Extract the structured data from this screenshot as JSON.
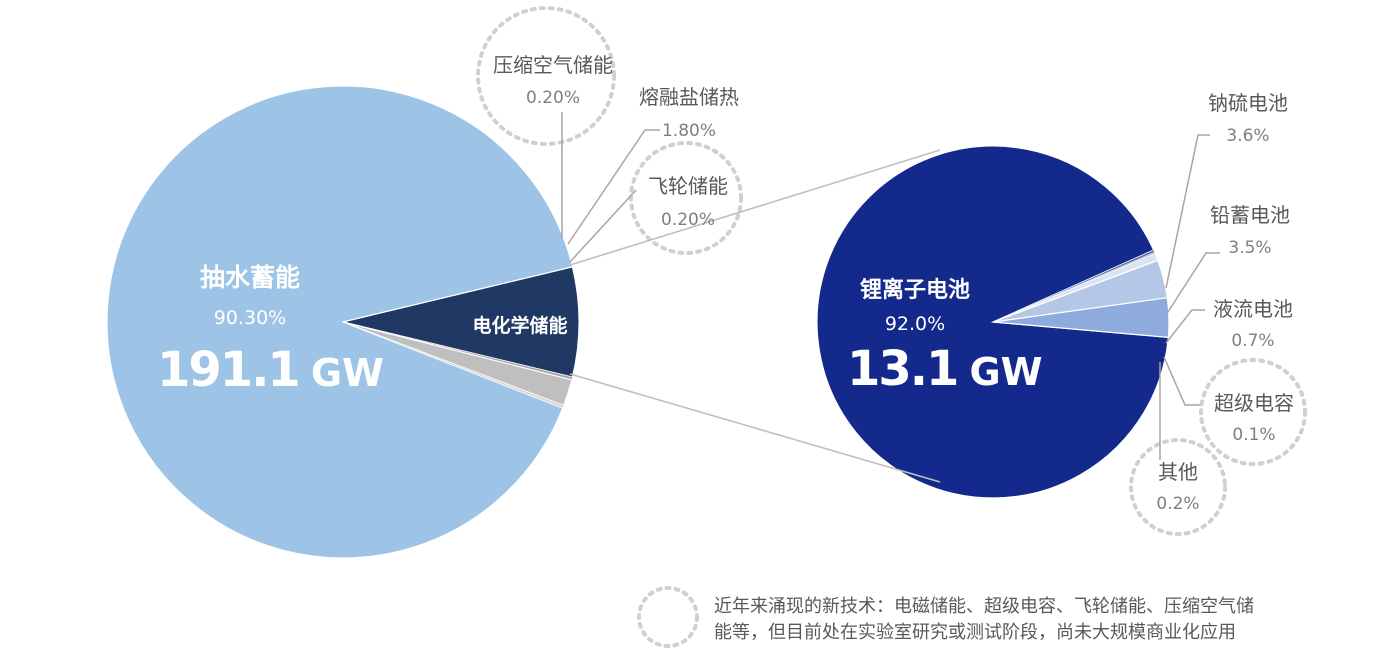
{
  "chart_data": [
    {
      "type": "pie",
      "title": "",
      "slices": [
        {
          "label": "抽水蓄能",
          "value_label": "90.30%",
          "value": 90.3,
          "extra": "191.1",
          "unit": "GW",
          "color": "#9dc3e6"
        },
        {
          "label": "电化学储能",
          "value_label": "",
          "value": 7.5,
          "color": "#1f3864"
        },
        {
          "label": "飞轮储能",
          "value_label": "0.20%",
          "value": 0.2,
          "color": "#a6a6a6"
        },
        {
          "label": "熔融盐储热",
          "value_label": "1.80%",
          "value": 1.8,
          "color": "#bfbfbf"
        },
        {
          "label": "压缩空气储能",
          "value_label": "0.20%",
          "value": 0.2,
          "color": "#d9d9d9"
        }
      ]
    },
    {
      "type": "pie",
      "title": "",
      "slices": [
        {
          "label": "锂离子电池",
          "value_label": "92.0%",
          "value": 92.0,
          "extra": "13.1",
          "unit": "GW",
          "color": "#132a8c"
        },
        {
          "label": "钠硫电池",
          "value_label": "3.6%",
          "value": 3.6,
          "color": "#8faadc"
        },
        {
          "label": "铅蓄电池",
          "value_label": "3.5%",
          "value": 3.5,
          "color": "#b4c7e7"
        },
        {
          "label": "液流电池",
          "value_label": "0.7%",
          "value": 0.7,
          "color": "#dae3f3"
        },
        {
          "label": "超级电容",
          "value_label": "0.1%",
          "value": 0.1,
          "color": "#8a9fc8"
        },
        {
          "label": "其他",
          "value_label": "0.2%",
          "value": 0.2,
          "color": "#5b6f9e"
        }
      ]
    }
  ],
  "note": {
    "line1": "近年来涌现的新技术：电磁储能、超级电容、飞轮储能、压缩空气储",
    "line2": "能等，但目前处在实验室研究或测试阶段，尚未大规模商业化应用"
  },
  "colors": {
    "connector": "#bfbfbf",
    "dotted_circle": "#d0d0d0"
  }
}
